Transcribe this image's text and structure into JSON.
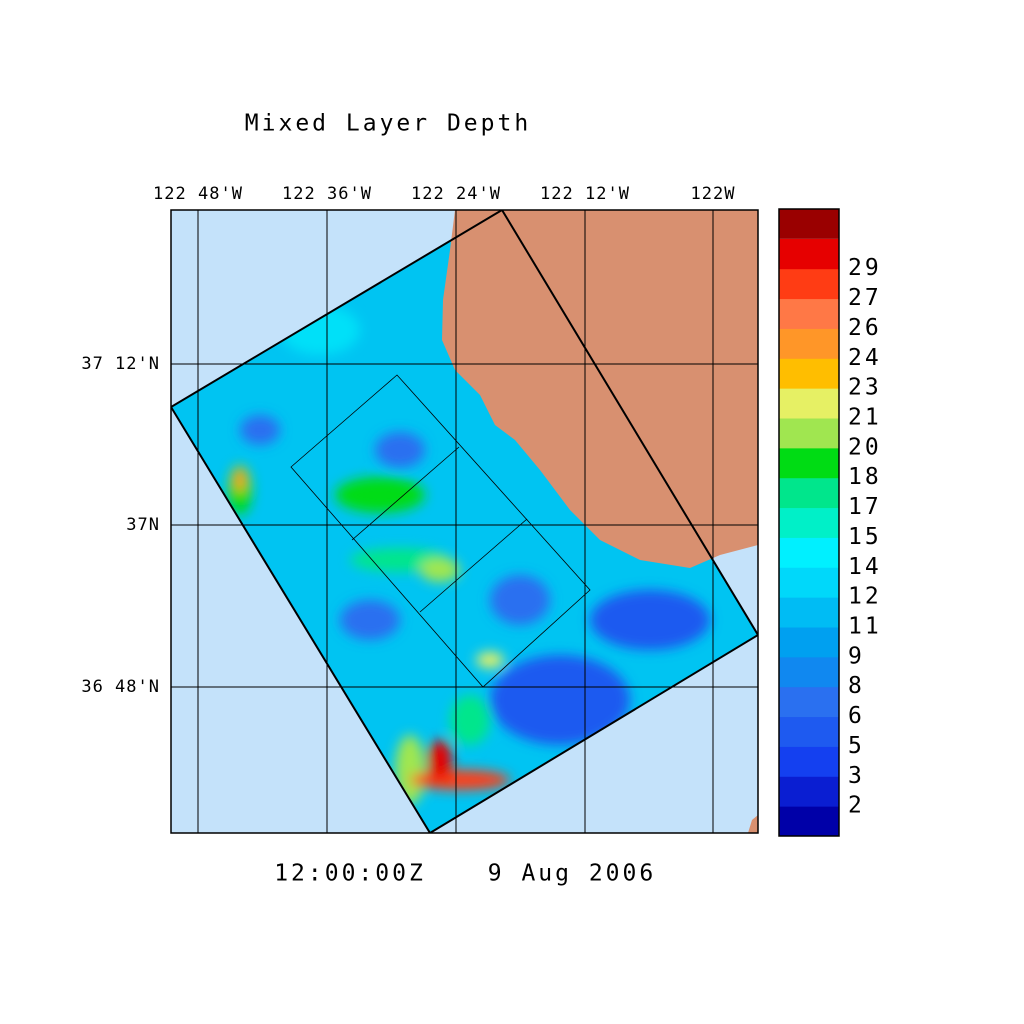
{
  "title": "Mixed Layer Depth",
  "lon_labels": [
    "122 48'W",
    "122 36'W",
    "122 24'W",
    "122 12'W",
    "122W"
  ],
  "lat_labels": [
    "37 12'N",
    "37N",
    "36 48'N"
  ],
  "time": "12:00:00Z",
  "date": "9 Aug 2006",
  "colorbar": {
    "labels": [
      2,
      3,
      5,
      6,
      8,
      9,
      11,
      12,
      14,
      15,
      17,
      18,
      20,
      21,
      23,
      24,
      26,
      27,
      29
    ],
    "colors": [
      "#0000a8",
      "#0a1ed2",
      "#1440f0",
      "#1e5af0",
      "#2a70f0",
      "#1088f0",
      "#00a0f0",
      "#00bcf4",
      "#00d8fa",
      "#00f0ff",
      "#00f0c8",
      "#00e68c",
      "#00dc14",
      "#a0e650",
      "#e6f064",
      "#ffbe00",
      "#ff9628",
      "#ff7846",
      "#ff3c14",
      "#e60000"
    ],
    "top_color": "#9a0000"
  }
}
